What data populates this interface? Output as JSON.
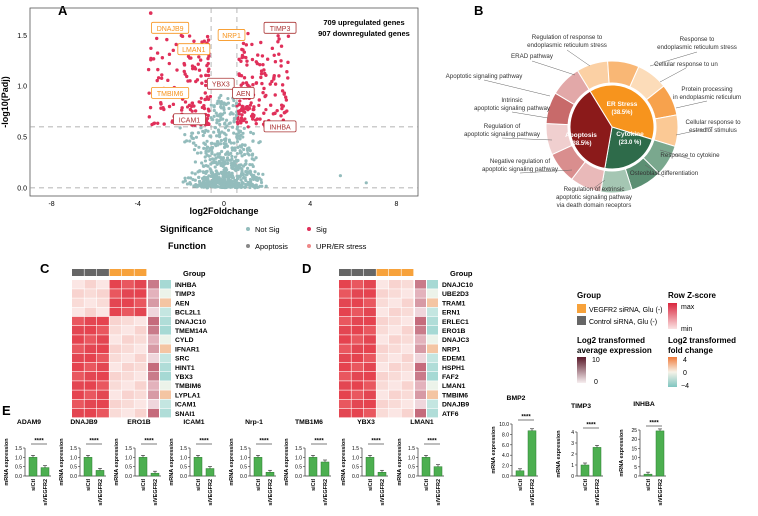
{
  "panel_letters": {
    "a": "A",
    "b": "B",
    "c": "C",
    "d": "D",
    "e": "E"
  },
  "colors": {
    "sig": "#e0305a",
    "notsig": "#93bcbc",
    "apop": "#8b1a1a",
    "er": "#f7941d",
    "cyt": "#2e6b4a",
    "vegfr": "#f7a23b",
    "ctrl": "#666666",
    "bar": "#4caf50"
  },
  "volcano": {
    "xlabel": "log2Foldchange",
    "ylabel": "-log10(Padj)",
    "up_text": "709 upregulated genes",
    "down_text": "907 downregulated genes",
    "xticks": [
      "-8",
      "-4",
      "0",
      "4",
      "8"
    ],
    "yticks": [
      "0.0",
      "0.5",
      "1.0",
      "1.5"
    ],
    "labels": [
      {
        "text": "DNAJB9",
        "type": "er"
      },
      {
        "text": "LMAN1",
        "type": "er"
      },
      {
        "text": "NRP1",
        "type": "er"
      },
      {
        "text": "TMBIM6",
        "type": "er"
      },
      {
        "text": "YBX3",
        "type": "apop"
      },
      {
        "text": "AEN",
        "type": "apop"
      },
      {
        "text": "ICAM1",
        "type": "apop"
      },
      {
        "text": "TIMP3",
        "type": "apop"
      },
      {
        "text": "INHBA",
        "type": "apop"
      }
    ],
    "legend": {
      "significance": "Significance",
      "not_sig": "Not Sig",
      "sig": "Sig",
      "function": "Function",
      "apoptosis": "Apoptosis",
      "uprer": "UPR/ER stress"
    }
  },
  "sunburst": {
    "inner": [
      {
        "label": "ER Stress",
        "pct": "(38.5%)",
        "value": 38.5
      },
      {
        "label": "Cytokine",
        "pct": "(23.0 %)",
        "value": 23.0
      },
      {
        "label": "Apoptosis",
        "pct": "(38.5%)",
        "value": 38.5
      }
    ],
    "terms": [
      "Regulation of response to endoplasmic reticulum stress",
      "Response to endoplasmic reticulum stress",
      "ERAD pathway",
      "Cellular response to un",
      "Protein processing in endoplasmic reticulum",
      "Apoptotic signaling pathway",
      "Intrinsic apoptotic signaling pathway",
      "Cellular response to estradiol stimulus",
      "Response to cytokine",
      "Regulation of apoptotic signaling pathway",
      "Osteoblast differentiation",
      "Negative regulation of apoptotic signaling pathway",
      "Regulation of extrinsic apoptotic signaling pathway via death domain receptors"
    ]
  },
  "heatmap_c": {
    "group_label": "Group",
    "genes": [
      "INHBA",
      "TIMP3",
      "AEN",
      "BCL2L1",
      "DNAJC10",
      "TMEM14A",
      "CYLD",
      "IFNAR1",
      "SRC",
      "HINT1",
      "YBX3",
      "TMBIM6",
      "LYPLA1",
      "ICAM1",
      "SNAI1"
    ]
  },
  "heatmap_d": {
    "group_label": "Group",
    "genes": [
      "DNAJC10",
      "UBE2D3",
      "TRAM1",
      "ERN1",
      "ERLEC1",
      "ERO1B",
      "DNAJC3",
      "NRP1",
      "EDEM1",
      "HSPH1",
      "FAF2",
      "LMAN1",
      "TMBIM6",
      "DNAJB9",
      "ATF6"
    ]
  },
  "hm_legend": {
    "group_title": "Group",
    "vegfr": "VEGFR2 siRNA, Glu (-)",
    "ctrl": "Control siRNA, Glu (-)",
    "rowz_title": "Row Z-score",
    "max": "max",
    "min": "min",
    "avg_title_1": "Log2 transformed",
    "avg_title_2": "average expression",
    "avg_hi": "10",
    "avg_lo": "0",
    "fc_title_1": "Log2 transformed",
    "fc_title_2": "fold change",
    "fc_hi": "4",
    "fc_mid": "0",
    "fc_lo": "−4"
  },
  "bars": {
    "ylabel": "mRNA expression",
    "sig": "****",
    "cat_a": "siCtl",
    "cat_b": "siVEGFR2",
    "genes": [
      {
        "name": "ADAM9",
        "ticks": [
          "0.0",
          "0.5",
          "1.0",
          "1.5"
        ],
        "ctl": 1.0,
        "si": 0.45,
        "max": 1.5
      },
      {
        "name": "DNAJB9",
        "ticks": [
          "0.0",
          "0.5",
          "1.0",
          "1.5"
        ],
        "ctl": 1.0,
        "si": 0.3,
        "max": 1.5
      },
      {
        "name": "ERO1B",
        "ticks": [
          "0.0",
          "0.5",
          "1.0",
          "1.5"
        ],
        "ctl": 1.0,
        "si": 0.15,
        "max": 1.5
      },
      {
        "name": "ICAM1",
        "ticks": [
          "0.0",
          "0.5",
          "1.0",
          "1.5"
        ],
        "ctl": 1.0,
        "si": 0.4,
        "max": 1.5
      },
      {
        "name": "Nrp-1",
        "ticks": [
          "0.0",
          "0.5",
          "1.0",
          "1.5"
        ],
        "ctl": 1.0,
        "si": 0.2,
        "max": 1.5
      },
      {
        "name": "TMB1M6",
        "ticks": [
          "0.0",
          "0.5",
          "1.0",
          "1.5"
        ],
        "ctl": 1.0,
        "si": 0.75,
        "max": 1.5
      },
      {
        "name": "YBX3",
        "ticks": [
          "0.0",
          "0.5",
          "1.0",
          "1.5"
        ],
        "ctl": 1.0,
        "si": 0.2,
        "max": 1.5
      },
      {
        "name": "LMAN1",
        "ticks": [
          "0.0",
          "0.5",
          "1.0",
          "1.5"
        ],
        "ctl": 1.0,
        "si": 0.5,
        "max": 1.5
      },
      {
        "name": "BMP2",
        "ticks": [
          "0.0",
          "2.0",
          "4.0",
          "6.0",
          "8.0",
          "10.0"
        ],
        "ctl": 1.0,
        "si": 8.7,
        "max": 10
      },
      {
        "name": "TIMP3",
        "ticks": [
          "0",
          "1",
          "2",
          "3",
          "4"
        ],
        "ctl": 1.0,
        "si": 2.6,
        "max": 4
      },
      {
        "name": "INHBA",
        "ticks": [
          "0",
          "5",
          "10",
          "15",
          "20",
          "25"
        ],
        "ctl": 1.0,
        "si": 24.5,
        "max": 25
      }
    ]
  }
}
